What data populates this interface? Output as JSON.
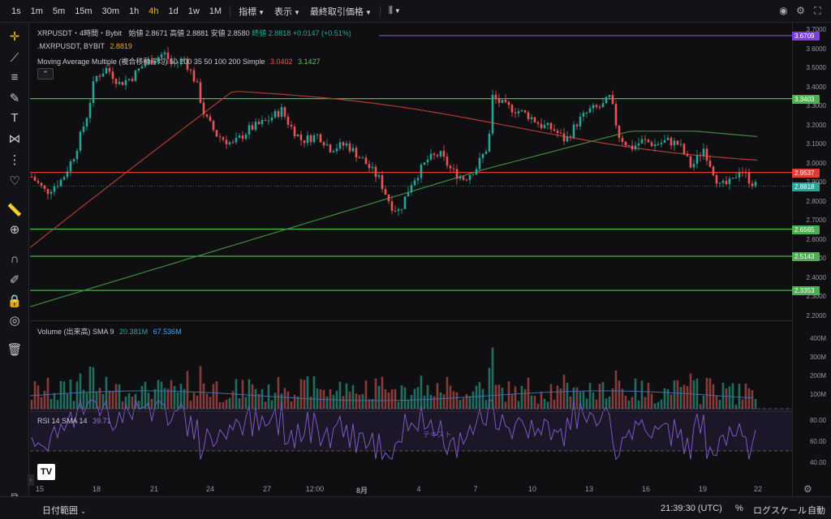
{
  "toolbar": {
    "timeframes": [
      "1s",
      "1m",
      "5m",
      "15m",
      "30m",
      "1h",
      "4h",
      "1d",
      "1w",
      "1M"
    ],
    "active_timeframe": "4h",
    "indicators_label": "指標",
    "display_label": "表示",
    "best_price_label": "最終取引価格"
  },
  "legend": {
    "symbol_line": "XRPUSDT・4時間・Bybit",
    "open": "始値 2.8671",
    "high": "高値 2.8881",
    "low": "安値 2.8580",
    "close": "終値 2.8818 +0.0147 (+0.51%)",
    "mark_line_name": ".MXRPUSDT, BYBIT",
    "mark_line_value": "2.8819",
    "ma_name": "Moving Average Multiple (複合移動平均) 50 200 35 50 100 200 Simple",
    "ma_value1": "3.0402",
    "ma_value2": "3.1427",
    "volume_name": "Volume (出来高) SMA 9",
    "volume_value1": "20.381M",
    "volume_value2": "67.536M",
    "rsi_name": "RSI 14 SMA 14",
    "rsi_value": "39.71",
    "rsi_note": "テキスト"
  },
  "price_axis": [
    "3.7000",
    "3.6000",
    "3.5000",
    "3.4000",
    "3.3000",
    "3.2000",
    "3.1000",
    "3.0000",
    "2.9000",
    "2.8000",
    "2.7000",
    "2.6000",
    "2.5000",
    "2.4000",
    "2.3000",
    "2.2000"
  ],
  "price_tags": [
    {
      "value": "3.6709",
      "color": "#7b3fe4"
    },
    {
      "value": "3.3403",
      "color": "#4caf50"
    },
    {
      "value": "2.9537",
      "color": "#e53935"
    },
    {
      "value": "2.8819",
      "color": "#f0a020"
    },
    {
      "value": "2.8818",
      "color": "#26a69a"
    },
    {
      "value": "2.6565",
      "color": "#4caf50"
    },
    {
      "value": "2.5143",
      "color": "#4caf50"
    },
    {
      "value": "2.3353",
      "color": "#4caf50"
    }
  ],
  "volume_axis": [
    "400M",
    "300M",
    "200M",
    "100M"
  ],
  "rsi_axis": [
    "80.00",
    "60.00",
    "40.00"
  ],
  "time_axis": [
    "15",
    "18",
    "21",
    "24",
    "27",
    "12:00",
    "8月",
    "4",
    "7",
    "10",
    "13",
    "16",
    "19",
    "22"
  ],
  "bottom": {
    "date_range_label": "日付範囲",
    "clock": "21:39:30 (UTC)",
    "percent_label": "%",
    "log_label": "ログスケール",
    "auto_label": "自動"
  },
  "colors": {
    "up": "#26a69a",
    "down": "#ef5350",
    "background": "#0f0f12",
    "ma_red": "#c0392b",
    "ma_green": "#3d8b3d",
    "rsi": "#7e57c2"
  }
}
